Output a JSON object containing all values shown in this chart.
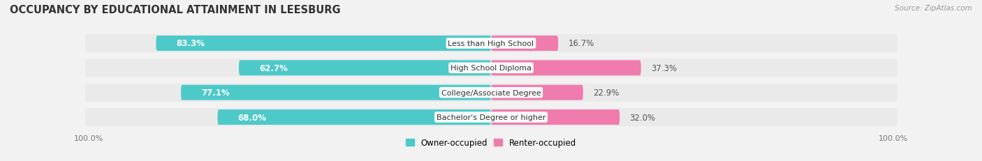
{
  "title": "OCCUPANCY BY EDUCATIONAL ATTAINMENT IN LEESBURG",
  "source": "Source: ZipAtlas.com",
  "categories": [
    "Less than High School",
    "High School Diploma",
    "College/Associate Degree",
    "Bachelor's Degree or higher"
  ],
  "owner_values": [
    83.3,
    62.7,
    77.1,
    68.0
  ],
  "renter_values": [
    16.7,
    37.3,
    22.9,
    32.0
  ],
  "owner_color": "#4EC9C9",
  "renter_color": "#F07BAD",
  "owner_label_color": "#FFFFFF",
  "renter_label_color": "#555555",
  "bg_bar_color": "#E0E0E0",
  "background_color": "#F2F2F2",
  "row_bg_color": "#EAEAEA",
  "title_fontsize": 10.5,
  "label_fontsize": 8.5,
  "tick_fontsize": 8,
  "source_fontsize": 7.5
}
